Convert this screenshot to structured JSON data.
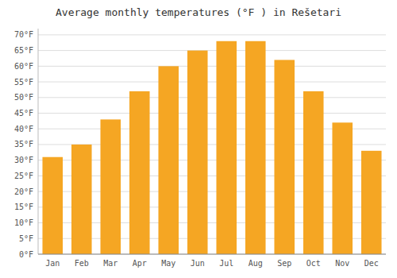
{
  "chart_data": {
    "type": "bar",
    "title": "Average monthly temperatures (°F ) in Rešetari",
    "categories": [
      "Jan",
      "Feb",
      "Mar",
      "Apr",
      "May",
      "Jun",
      "Jul",
      "Aug",
      "Sep",
      "Oct",
      "Nov",
      "Dec"
    ],
    "values": [
      31,
      35,
      43,
      52,
      60,
      65,
      68,
      68,
      62,
      52,
      42,
      33
    ],
    "color": "#F5A623",
    "ylim": [
      0,
      72
    ],
    "yticks": [
      {
        "value": 0,
        "label": "0°F"
      },
      {
        "value": 5,
        "label": "5°F"
      },
      {
        "value": 10,
        "label": "10°F"
      },
      {
        "value": 15,
        "label": "15°F"
      },
      {
        "value": 20,
        "label": "20°F"
      },
      {
        "value": 25,
        "label": "25°F"
      },
      {
        "value": 30,
        "label": "30°F"
      },
      {
        "value": 35,
        "label": "35°F"
      },
      {
        "value": 40,
        "label": "40°F"
      },
      {
        "value": 45,
        "label": "45°F"
      },
      {
        "value": 50,
        "label": "50°F"
      },
      {
        "value": 55,
        "label": "55°F"
      },
      {
        "value": 60,
        "label": "60°F"
      },
      {
        "value": 65,
        "label": "65°F"
      },
      {
        "value": 70,
        "label": "70°F"
      }
    ],
    "grid": true
  }
}
